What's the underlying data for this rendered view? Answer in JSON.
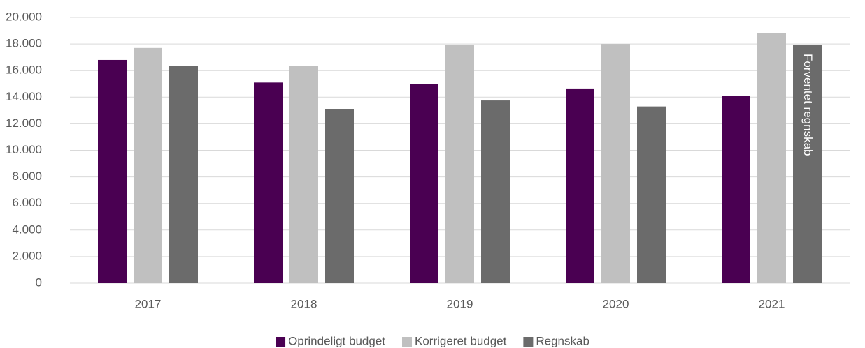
{
  "chart_data": {
    "type": "bar",
    "categories": [
      "2017",
      "2018",
      "2019",
      "2020",
      "2021"
    ],
    "series": [
      {
        "name": "Oprindeligt budget",
        "color": "#4a0052",
        "values": [
          16800,
          15100,
          15000,
          14650,
          14100
        ]
      },
      {
        "name": "Korrigeret budget",
        "color": "#c0c0c0",
        "values": [
          17700,
          16350,
          17900,
          18000,
          18800
        ]
      },
      {
        "name": "Regnskab",
        "color": "#6b6b6b",
        "values": [
          16350,
          13100,
          13750,
          13300,
          17900
        ]
      }
    ],
    "annotation": "Forventet regnskab",
    "ylim": [
      0,
      20000
    ],
    "yticks": [
      0,
      {
        "value": 2000,
        "label": "2.000"
      },
      {
        "value": 4000,
        "label": "4.000"
      },
      {
        "value": 6000,
        "label": "6.000"
      },
      {
        "value": 8000,
        "label": "8.000"
      },
      {
        "value": 10000,
        "label": "10.000"
      },
      {
        "value": 12000,
        "label": "12.000"
      },
      {
        "value": 14000,
        "label": "14.000"
      },
      {
        "value": 16000,
        "label": "16.000"
      },
      {
        "value": 18000,
        "label": "18.000"
      },
      {
        "value": 20000,
        "label": "20.000"
      }
    ],
    "grid": true,
    "legend": "bottom"
  }
}
